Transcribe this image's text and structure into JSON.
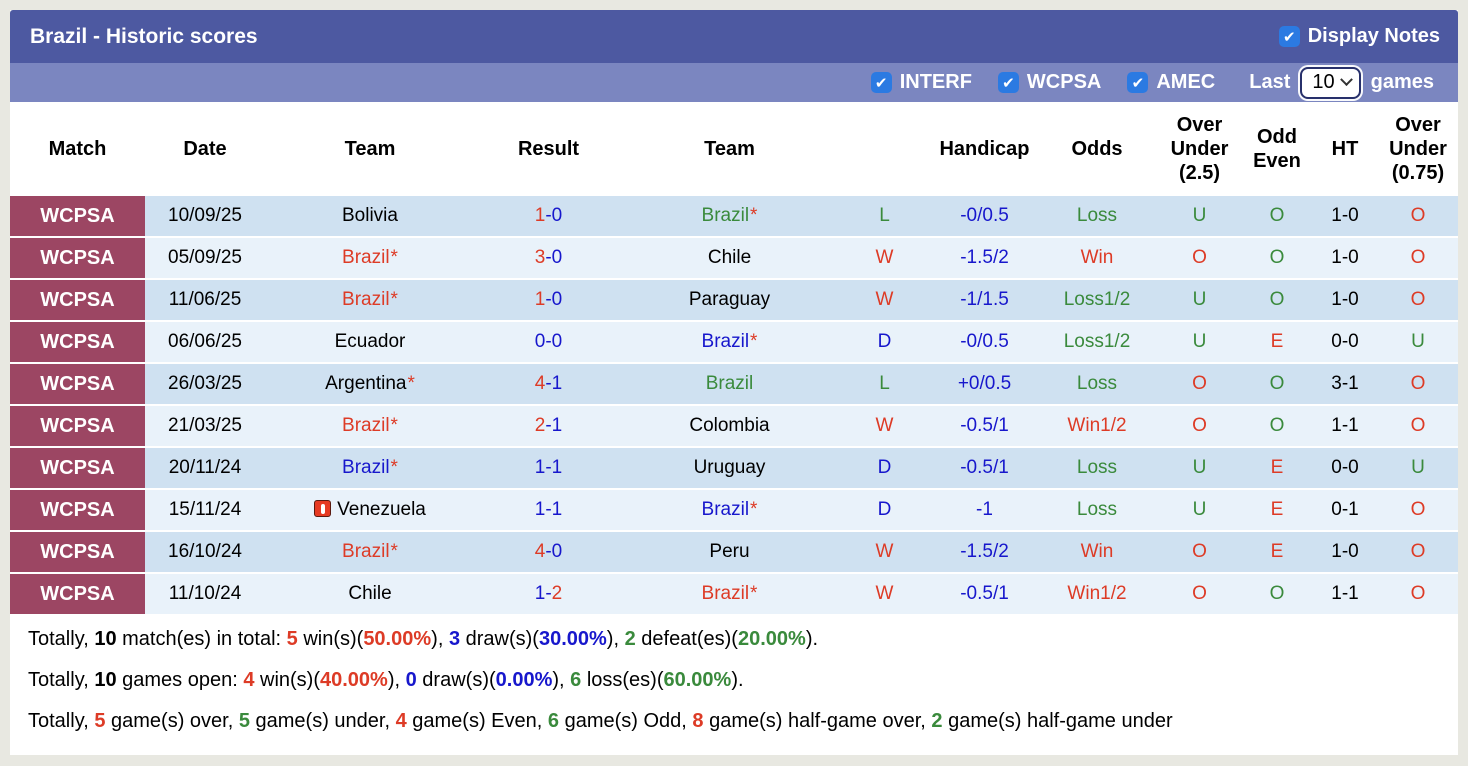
{
  "header": {
    "title": "Brazil - Historic scores",
    "display_notes_label": "Display Notes",
    "filters": [
      {
        "label": "INTERF",
        "checked": true
      },
      {
        "label": "WCPSA",
        "checked": true
      },
      {
        "label": "AMEC",
        "checked": true
      }
    ],
    "last_label": "Last",
    "games_count": "10",
    "games_label": "games"
  },
  "colors": {
    "red": "#dd3b26",
    "blue": "#1717cc",
    "green": "#3a8a3c",
    "bar_dark": "#4d59a1",
    "bar_light": "#7b86c0",
    "league_badge": "#9c4663",
    "row_dark": "#cfe1f1",
    "row_light": "#e9f2fa",
    "checkbox_blue": "#2b7ae2"
  },
  "table": {
    "columns": [
      "Match",
      "Date",
      "Team",
      "Result",
      "Team",
      "",
      "Handicap",
      "Odds",
      "Over Under (2.5)",
      "Odd Even",
      "HT",
      "Over Under (0.75)"
    ],
    "rows": [
      {
        "league": "WCPSA",
        "date": "10/09/25",
        "team1": {
          "name": "Bolivia",
          "color": "black",
          "star": false,
          "icon": false
        },
        "result": [
          {
            "t": "1",
            "c": "red"
          },
          {
            "t": "-0",
            "c": "blue"
          }
        ],
        "team2": {
          "name": "Brazil",
          "color": "green",
          "star": true,
          "icon": false
        },
        "wld": {
          "t": "L",
          "c": "green"
        },
        "handicap": "-0/0.5",
        "odds": {
          "t": "Loss",
          "c": "green"
        },
        "ou25": {
          "t": "U",
          "c": "green"
        },
        "oe": {
          "t": "O",
          "c": "green"
        },
        "ht": "1-0",
        "ou075": {
          "t": "O",
          "c": "red"
        }
      },
      {
        "league": "WCPSA",
        "date": "05/09/25",
        "team1": {
          "name": "Brazil",
          "color": "red",
          "star": true,
          "icon": false
        },
        "result": [
          {
            "t": "3",
            "c": "red"
          },
          {
            "t": "-0",
            "c": "blue"
          }
        ],
        "team2": {
          "name": "Chile",
          "color": "black",
          "star": false,
          "icon": false
        },
        "wld": {
          "t": "W",
          "c": "red"
        },
        "handicap": "-1.5/2",
        "odds": {
          "t": "Win",
          "c": "red"
        },
        "ou25": {
          "t": "O",
          "c": "red"
        },
        "oe": {
          "t": "O",
          "c": "green"
        },
        "ht": "1-0",
        "ou075": {
          "t": "O",
          "c": "red"
        }
      },
      {
        "league": "WCPSA",
        "date": "11/06/25",
        "team1": {
          "name": "Brazil",
          "color": "red",
          "star": true,
          "icon": false
        },
        "result": [
          {
            "t": "1",
            "c": "red"
          },
          {
            "t": "-0",
            "c": "blue"
          }
        ],
        "team2": {
          "name": "Paraguay",
          "color": "black",
          "star": false,
          "icon": false
        },
        "wld": {
          "t": "W",
          "c": "red"
        },
        "handicap": "-1/1.5",
        "odds": {
          "t": "Loss1/2",
          "c": "green"
        },
        "ou25": {
          "t": "U",
          "c": "green"
        },
        "oe": {
          "t": "O",
          "c": "green"
        },
        "ht": "1-0",
        "ou075": {
          "t": "O",
          "c": "red"
        }
      },
      {
        "league": "WCPSA",
        "date": "06/06/25",
        "team1": {
          "name": "Ecuador",
          "color": "black",
          "star": false,
          "icon": false
        },
        "result": [
          {
            "t": "0-0",
            "c": "blue"
          }
        ],
        "team2": {
          "name": "Brazil",
          "color": "blue",
          "star": true,
          "icon": false
        },
        "wld": {
          "t": "D",
          "c": "blue"
        },
        "handicap": "-0/0.5",
        "odds": {
          "t": "Loss1/2",
          "c": "green"
        },
        "ou25": {
          "t": "U",
          "c": "green"
        },
        "oe": {
          "t": "E",
          "c": "red"
        },
        "ht": "0-0",
        "ou075": {
          "t": "U",
          "c": "green"
        }
      },
      {
        "league": "WCPSA",
        "date": "26/03/25",
        "team1": {
          "name": "Argentina",
          "color": "black",
          "star": true,
          "icon": false
        },
        "result": [
          {
            "t": "4",
            "c": "red"
          },
          {
            "t": "-1",
            "c": "blue"
          }
        ],
        "team2": {
          "name": "Brazil",
          "color": "green",
          "star": false,
          "icon": false
        },
        "wld": {
          "t": "L",
          "c": "green"
        },
        "handicap": "+0/0.5",
        "odds": {
          "t": "Loss",
          "c": "green"
        },
        "ou25": {
          "t": "O",
          "c": "red"
        },
        "oe": {
          "t": "O",
          "c": "green"
        },
        "ht": "3-1",
        "ou075": {
          "t": "O",
          "c": "red"
        }
      },
      {
        "league": "WCPSA",
        "date": "21/03/25",
        "team1": {
          "name": "Brazil",
          "color": "red",
          "star": true,
          "icon": false
        },
        "result": [
          {
            "t": "2",
            "c": "red"
          },
          {
            "t": "-1",
            "c": "blue"
          }
        ],
        "team2": {
          "name": "Colombia",
          "color": "black",
          "star": false,
          "icon": false
        },
        "wld": {
          "t": "W",
          "c": "red"
        },
        "handicap": "-0.5/1",
        "odds": {
          "t": "Win1/2",
          "c": "red"
        },
        "ou25": {
          "t": "O",
          "c": "red"
        },
        "oe": {
          "t": "O",
          "c": "green"
        },
        "ht": "1-1",
        "ou075": {
          "t": "O",
          "c": "red"
        }
      },
      {
        "league": "WCPSA",
        "date": "20/11/24",
        "team1": {
          "name": "Brazil",
          "color": "blue",
          "star": true,
          "icon": false
        },
        "result": [
          {
            "t": "1-1",
            "c": "blue"
          }
        ],
        "team2": {
          "name": "Uruguay",
          "color": "black",
          "star": false,
          "icon": false
        },
        "wld": {
          "t": "D",
          "c": "blue"
        },
        "handicap": "-0.5/1",
        "odds": {
          "t": "Loss",
          "c": "green"
        },
        "ou25": {
          "t": "U",
          "c": "green"
        },
        "oe": {
          "t": "E",
          "c": "red"
        },
        "ht": "0-0",
        "ou075": {
          "t": "U",
          "c": "green"
        }
      },
      {
        "league": "WCPSA",
        "date": "15/11/24",
        "team1": {
          "name": "Venezuela",
          "color": "black",
          "star": false,
          "icon": true
        },
        "result": [
          {
            "t": "1-1",
            "c": "blue"
          }
        ],
        "team2": {
          "name": "Brazil",
          "color": "blue",
          "star": true,
          "icon": false
        },
        "wld": {
          "t": "D",
          "c": "blue"
        },
        "handicap": "-1",
        "odds": {
          "t": "Loss",
          "c": "green"
        },
        "ou25": {
          "t": "U",
          "c": "green"
        },
        "oe": {
          "t": "E",
          "c": "red"
        },
        "ht": "0-1",
        "ou075": {
          "t": "O",
          "c": "red"
        }
      },
      {
        "league": "WCPSA",
        "date": "16/10/24",
        "team1": {
          "name": "Brazil",
          "color": "red",
          "star": true,
          "icon": false
        },
        "result": [
          {
            "t": "4",
            "c": "red"
          },
          {
            "t": "-0",
            "c": "blue"
          }
        ],
        "team2": {
          "name": "Peru",
          "color": "black",
          "star": false,
          "icon": false
        },
        "wld": {
          "t": "W",
          "c": "red"
        },
        "handicap": "-1.5/2",
        "odds": {
          "t": "Win",
          "c": "red"
        },
        "ou25": {
          "t": "O",
          "c": "red"
        },
        "oe": {
          "t": "E",
          "c": "red"
        },
        "ht": "1-0",
        "ou075": {
          "t": "O",
          "c": "red"
        }
      },
      {
        "league": "WCPSA",
        "date": "11/10/24",
        "team1": {
          "name": "Chile",
          "color": "black",
          "star": false,
          "icon": false
        },
        "result": [
          {
            "t": "1-",
            "c": "blue"
          },
          {
            "t": "2",
            "c": "red"
          }
        ],
        "team2": {
          "name": "Brazil",
          "color": "red",
          "star": true,
          "icon": false
        },
        "wld": {
          "t": "W",
          "c": "red"
        },
        "handicap": "-0.5/1",
        "odds": {
          "t": "Win1/2",
          "c": "red"
        },
        "ou25": {
          "t": "O",
          "c": "red"
        },
        "oe": {
          "t": "O",
          "c": "green"
        },
        "ht": "1-1",
        "ou075": {
          "t": "O",
          "c": "red"
        }
      }
    ]
  },
  "summary": {
    "lines": [
      [
        {
          "t": "Totally, ",
          "c": "black",
          "b": false
        },
        {
          "t": "10",
          "c": "black",
          "b": true
        },
        {
          "t": " match(es) in total: ",
          "c": "black",
          "b": false
        },
        {
          "t": "5",
          "c": "red",
          "b": true
        },
        {
          "t": " win(s)(",
          "c": "black",
          "b": false
        },
        {
          "t": "50.00%",
          "c": "red",
          "b": true
        },
        {
          "t": "), ",
          "c": "black",
          "b": false
        },
        {
          "t": "3",
          "c": "blue",
          "b": true
        },
        {
          "t": " draw(s)(",
          "c": "black",
          "b": false
        },
        {
          "t": "30.00%",
          "c": "blue",
          "b": true
        },
        {
          "t": "), ",
          "c": "black",
          "b": false
        },
        {
          "t": "2",
          "c": "green",
          "b": true
        },
        {
          "t": " defeat(es)(",
          "c": "black",
          "b": false
        },
        {
          "t": "20.00%",
          "c": "green",
          "b": true
        },
        {
          "t": ").",
          "c": "black",
          "b": false
        }
      ],
      [
        {
          "t": "Totally, ",
          "c": "black",
          "b": false
        },
        {
          "t": "10",
          "c": "black",
          "b": true
        },
        {
          "t": " games open: ",
          "c": "black",
          "b": false
        },
        {
          "t": "4",
          "c": "red",
          "b": true
        },
        {
          "t": " win(s)(",
          "c": "black",
          "b": false
        },
        {
          "t": "40.00%",
          "c": "red",
          "b": true
        },
        {
          "t": "), ",
          "c": "black",
          "b": false
        },
        {
          "t": "0",
          "c": "blue",
          "b": true
        },
        {
          "t": " draw(s)(",
          "c": "black",
          "b": false
        },
        {
          "t": "0.00%",
          "c": "blue",
          "b": true
        },
        {
          "t": "), ",
          "c": "black",
          "b": false
        },
        {
          "t": "6",
          "c": "green",
          "b": true
        },
        {
          "t": " loss(es)(",
          "c": "black",
          "b": false
        },
        {
          "t": "60.00%",
          "c": "green",
          "b": true
        },
        {
          "t": ").",
          "c": "black",
          "b": false
        }
      ],
      [
        {
          "t": "Totally, ",
          "c": "black",
          "b": false
        },
        {
          "t": "5",
          "c": "red",
          "b": true
        },
        {
          "t": " game(s) over, ",
          "c": "black",
          "b": false
        },
        {
          "t": "5",
          "c": "green",
          "b": true
        },
        {
          "t": " game(s) under, ",
          "c": "black",
          "b": false
        },
        {
          "t": "4",
          "c": "red",
          "b": true
        },
        {
          "t": " game(s) Even, ",
          "c": "black",
          "b": false
        },
        {
          "t": "6",
          "c": "green",
          "b": true
        },
        {
          "t": " game(s) Odd, ",
          "c": "black",
          "b": false
        },
        {
          "t": "8",
          "c": "red",
          "b": true
        },
        {
          "t": " game(s) half-game over, ",
          "c": "black",
          "b": false
        },
        {
          "t": "2",
          "c": "green",
          "b": true
        },
        {
          "t": " game(s) half-game under",
          "c": "black",
          "b": false
        }
      ]
    ]
  }
}
